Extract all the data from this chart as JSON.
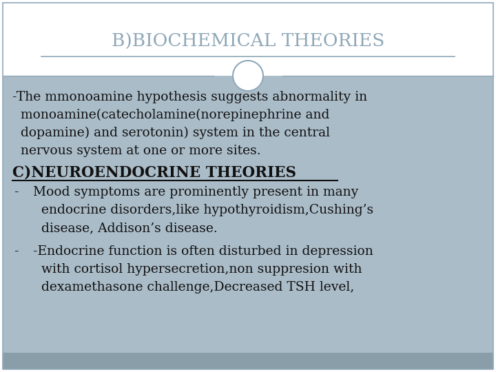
{
  "title": "B)BIOCHEMICAL THEORIES",
  "title_color": "#8FA8B8",
  "title_fontsize": 19,
  "bg_top": "#FFFFFF",
  "content_bg": "#AABCC8",
  "bottom_strip_color": "#8A9EAA",
  "circle_facecolor": "#FFFFFF",
  "circle_edge_color": "#8FA8B8",
  "line_color": "#8FA8B8",
  "body_text_color": "#111111",
  "body_fontsize": 13.5,
  "heading2_fontsize": 15.5,
  "heading2_color": "#111111",
  "border_color": "#8FA8B8",
  "para1_line1": "-The mmonoamine hypothesis suggests abnormality in",
  "para1_line2": "  monoamine(catecholamine(norepinephrine and",
  "para1_line3": "  dopamine) and serotonin) system in the central",
  "para1_line4": "  nervous system at one or more sites.",
  "heading2": "C)NEUROENDOCRINE THEORIES",
  "bullet1_line1": "Mood symptoms are prominently present in many",
  "bullet1_line2": "  endocrine disorders,like hypothyroidism,Cushing’s",
  "bullet1_line3": "  disease, Addison’s disease.",
  "bullet2_line1": "-Endocrine function is often disturbed in depression",
  "bullet2_line2": "  with cortisol hypersecretion,non suppresion with",
  "bullet2_line3": "  dexamethasone challenge,Decreased TSH level,"
}
